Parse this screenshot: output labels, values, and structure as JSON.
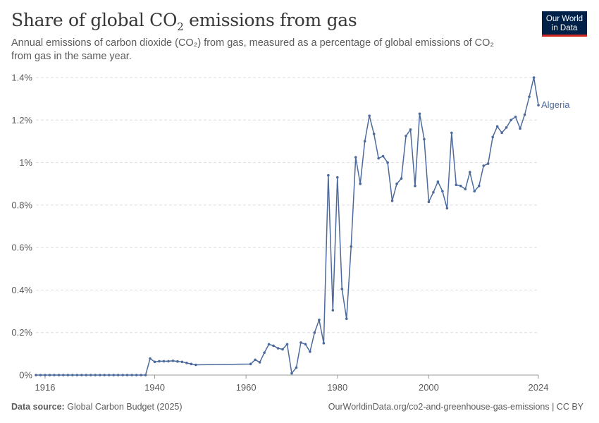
{
  "header": {
    "title_prefix": "Share of global CO",
    "title_sub": "2",
    "title_suffix": " emissions from gas",
    "subtitle": "Annual emissions of carbon dioxide (CO₂) from gas, measured as a percentage of global emissions of CO₂ from gas in the same year."
  },
  "logo": {
    "line1": "Our World",
    "line2": "in Data"
  },
  "footer": {
    "source_label": "Data source:",
    "source_value": "Global Carbon Budget (2025)",
    "right_text": "OurWorldinData.org/co2-and-greenhouse-gas-emissions | CC BY"
  },
  "colors": {
    "series": "#4c6a9c",
    "grid": "#dddddd",
    "text": "#5b5b5b"
  },
  "chart_data": {
    "type": "line",
    "title": "Share of global CO₂ emissions from gas",
    "xlabel": "",
    "ylabel": "",
    "xlim": [
      1914,
      2024
    ],
    "ylim": [
      0,
      1.4
    ],
    "x_ticks": [
      1916,
      1940,
      1960,
      1980,
      2000,
      2024
    ],
    "y_ticks": [
      0,
      0.2,
      0.4,
      0.6,
      0.8,
      1,
      1.2,
      1.4
    ],
    "y_tick_labels": [
      "0%",
      "0.2%",
      "0.4%",
      "0.6%",
      "0.8%",
      "1%",
      "1.2%",
      "1.4%"
    ],
    "grid": "horizontal dashed",
    "series": [
      {
        "name": "Algeria",
        "x": [
          1914,
          1915,
          1916,
          1917,
          1918,
          1919,
          1920,
          1921,
          1922,
          1923,
          1924,
          1925,
          1926,
          1927,
          1928,
          1929,
          1930,
          1931,
          1932,
          1933,
          1934,
          1935,
          1936,
          1937,
          1938,
          1939,
          1940,
          1941,
          1942,
          1943,
          1944,
          1945,
          1946,
          1947,
          1948,
          1949,
          1961,
          1962,
          1963,
          1964,
          1965,
          1966,
          1967,
          1968,
          1969,
          1970,
          1971,
          1972,
          1973,
          1974,
          1975,
          1976,
          1977,
          1978,
          1979,
          1980,
          1981,
          1982,
          1983,
          1984,
          1985,
          1986,
          1987,
          1988,
          1989,
          1990,
          1991,
          1992,
          1993,
          1994,
          1995,
          1996,
          1997,
          1998,
          1999,
          2000,
          2001,
          2002,
          2003,
          2004,
          2005,
          2006,
          2007,
          2008,
          2009,
          2010,
          2011,
          2012,
          2013,
          2014,
          2015,
          2016,
          2017,
          2018,
          2019,
          2020,
          2021,
          2022,
          2023,
          2024
        ],
        "values": [
          0,
          0,
          0,
          0,
          0,
          0,
          0,
          0,
          0,
          0,
          0,
          0,
          0,
          0,
          0,
          0,
          0,
          0,
          0,
          0,
          0,
          0,
          0,
          0,
          0,
          0.078,
          0.062,
          0.065,
          0.065,
          0.065,
          0.067,
          0.064,
          0.062,
          0.057,
          0.052,
          0.048,
          0.052,
          0.072,
          0.06,
          0.105,
          0.145,
          0.138,
          0.126,
          0.121,
          0.145,
          0.008,
          0.035,
          0.153,
          0.145,
          0.11,
          0.2,
          0.26,
          0.15,
          0.94,
          0.305,
          0.93,
          0.405,
          0.265,
          0.605,
          1.025,
          0.9,
          1.1,
          1.22,
          1.135,
          1.02,
          1.03,
          1.0,
          0.82,
          0.9,
          0.925,
          1.125,
          1.155,
          0.89,
          1.23,
          1.11,
          0.815,
          0.86,
          0.91,
          0.865,
          0.785,
          1.14,
          0.895,
          0.89,
          0.875,
          0.955,
          0.865,
          0.89,
          0.985,
          0.995,
          1.12,
          1.17,
          1.14,
          1.165,
          1.2,
          1.215,
          1.16,
          1.225,
          1.31,
          1.4,
          1.27
        ]
      }
    ]
  }
}
